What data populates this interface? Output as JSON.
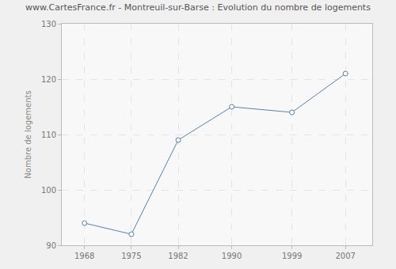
{
  "chart_data": {
    "type": "line",
    "title": "www.CartesFrance.fr - Montreuil-sur-Barse : Evolution du nombre de logements",
    "y_label": "Nombre de logements",
    "x": [
      1968,
      1975,
      1982,
      1990,
      1999,
      2007
    ],
    "values": [
      94,
      92,
      109,
      115,
      114,
      121
    ],
    "color": "#5682b0",
    "marker": "circle",
    "xlim": [
      1964.6,
      2011
    ],
    "xticks": [
      1968,
      1975,
      1982,
      1990,
      1999,
      2007
    ],
    "ylim": [
      90,
      130
    ],
    "yticks": [
      90,
      100,
      110,
      120,
      130
    ],
    "grid": true
  }
}
